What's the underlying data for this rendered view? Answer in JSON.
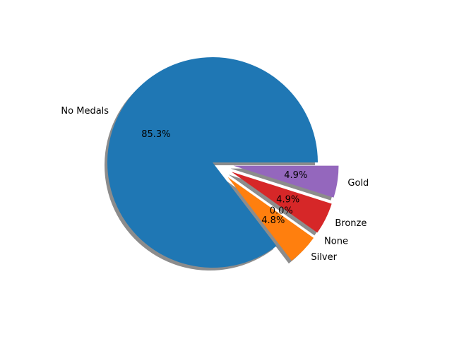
{
  "chart_data": {
    "type": "pie",
    "categories": [
      "No Medals",
      "Silver",
      "None",
      "Bronze",
      "Gold"
    ],
    "values": [
      85.3,
      4.8,
      0.0,
      4.9,
      4.9
    ],
    "percent_labels": [
      "85.3%",
      "4.8%",
      "0.0%",
      "4.9%",
      "4.9%"
    ],
    "colors": [
      "#1f77b4",
      "#ff7f0e",
      "#2ca02c",
      "#d62728",
      "#9467bd"
    ],
    "explode": [
      0,
      0.2,
      0.2,
      0.2,
      0.2
    ],
    "start_angle_deg": 0,
    "direction": "counterclockwise",
    "shadow": true,
    "title": "",
    "legend": "none"
  }
}
